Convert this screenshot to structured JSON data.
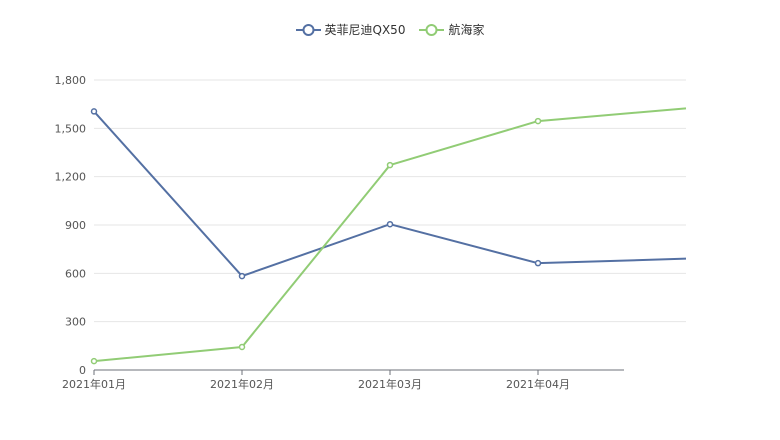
{
  "chart_data": {
    "type": "line",
    "title": "",
    "xlabel": "",
    "ylabel": "",
    "categories": [
      "2021年01月",
      "2021年02月",
      "2021年03月",
      "2021年04月",
      ""
    ],
    "series": [
      {
        "name": "英菲尼迪QX50",
        "color": "#5470a3",
        "values": [
          1605,
          583,
          905,
          663,
          691
        ]
      },
      {
        "name": "航海家",
        "color": "#91cc75",
        "values": [
          55,
          143,
          1272,
          1545,
          1624
        ]
      }
    ],
    "ylim": [
      0,
      1800
    ],
    "yticks": [
      "0",
      "300",
      "600",
      "900",
      "1,200",
      "1,500",
      "1,800"
    ],
    "grid": true,
    "legend_position": "top-center"
  }
}
